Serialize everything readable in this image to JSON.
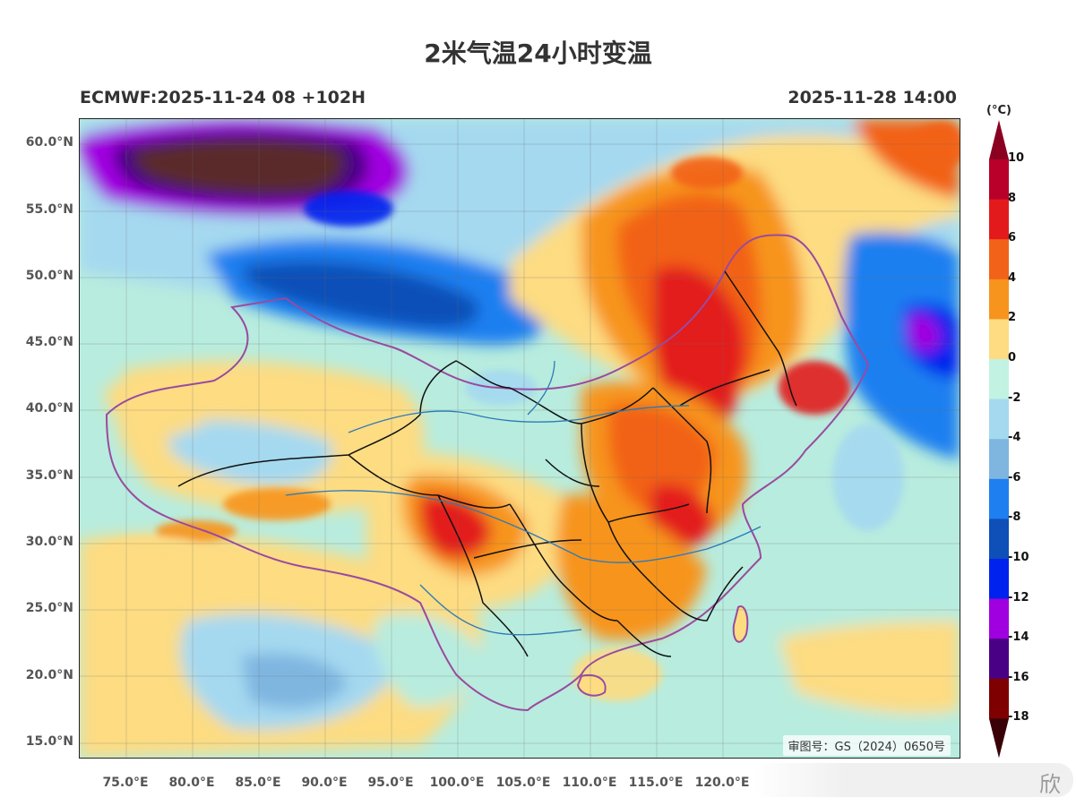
{
  "title": "2米气温24小时变温",
  "subtitle_left": "ECMWF:2025-11-24 08 +102H",
  "subtitle_right": "2025-11-28 14:00",
  "map_note": "审图号：GS（2024）0650号",
  "lat_labels": [
    "60.0°N",
    "55.0°N",
    "50.0°N",
    "45.0°N",
    "40.0°N",
    "35.0°N",
    "30.0°N",
    "25.0°N",
    "20.0°N",
    "15.0°N"
  ],
  "lon_labels": [
    "75.0°E",
    "80.0°E",
    "85.0°E",
    "90.0°E",
    "95.0°E",
    "100.0°E",
    "105.0°E",
    "110.0°E",
    "115.0°E",
    "120.0°E"
  ],
  "colorbar": {
    "unit": "(°C)",
    "labels": [
      "10",
      "8",
      "6",
      "4",
      "2",
      "0",
      "-2",
      "-4",
      "-6",
      "-8",
      "-10",
      "-12",
      "-14",
      "-16",
      "-18"
    ],
    "colors": [
      "#b8002b",
      "#e31a1c",
      "#f26218",
      "#f7941d",
      "#fddc82",
      "#c2f2e2",
      "#a5d9f0",
      "#7fb6e0",
      "#1e7ff0",
      "#0e4fb8",
      "#0022ee",
      "#a000e0",
      "#4a0085",
      "#7f0000"
    ],
    "top_cap_color": "#8b0021",
    "bottom_cap_color": "#3a0008"
  },
  "watermark": "欣"
}
